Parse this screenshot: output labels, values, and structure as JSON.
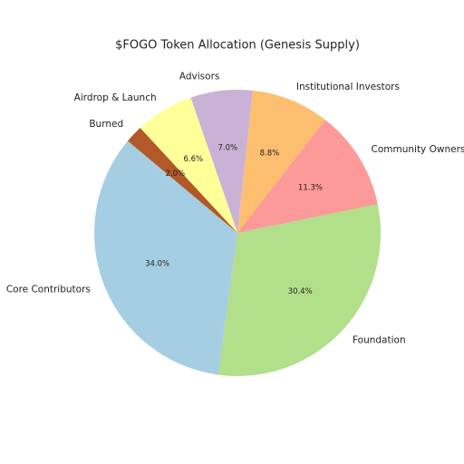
{
  "chart_data": {
    "type": "pie",
    "title": "$FOGO Token Allocation (Genesis Supply)",
    "categories": [
      "Core Contributors",
      "Foundation",
      "Community Ownersh",
      "Institutional Investors",
      "Advisors",
      "Airdrop & Launch",
      "Burned"
    ],
    "values": [
      34.0,
      30.4,
      11.3,
      8.8,
      7.0,
      6.6,
      2.0
    ],
    "value_labels": [
      "34.0%",
      "30.4%",
      "11.3%",
      "8.8%",
      "7.0%",
      "6.6%",
      "2.0%"
    ],
    "colors": [
      "#a6cee3",
      "#b2df8a",
      "#fb9a99",
      "#fdbf6f",
      "#cab2d6",
      "#ffff99",
      "#b15928"
    ],
    "start_angle": 140
  }
}
